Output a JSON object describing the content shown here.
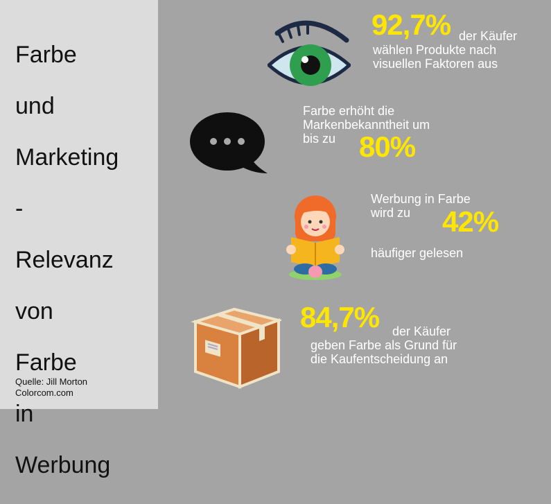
{
  "title": {
    "lines": [
      "Farbe",
      "und",
      "Marketing",
      "-",
      "Relevanz",
      "von",
      "Farbe",
      "in",
      "Werbung"
    ]
  },
  "source": {
    "line1": "Quelle: Jill Morton",
    "line2": "Colorcom.com"
  },
  "stats": [
    {
      "value": "92,7%",
      "text_line1": "der Käufer",
      "text_line2": "wählen Produkte nach",
      "text_line3": "visuellen Faktoren aus",
      "icon": "eye-icon"
    },
    {
      "value": "80%",
      "text_line1": "Farbe erhöht die",
      "text_line2": "Markenbekanntheit um",
      "text_line3": "bis zu",
      "icon": "speech-bubble-icon"
    },
    {
      "value": "42%",
      "text_line1": "Werbung in Farbe",
      "text_line2": "wird zu",
      "text_line3": "häufiger gelesen",
      "icon": "reading-girl-icon"
    },
    {
      "value": "84,7%",
      "text_line1": "der Käufer",
      "text_line2": "geben Farbe als Grund für",
      "text_line3": "die Kaufentscheidung an",
      "icon": "box-icon"
    }
  ],
  "colors": {
    "left_panel": "#dcdcdc",
    "right_panel": "#a4a4a4",
    "highlight": "#ffe600",
    "text": "#ffffff"
  }
}
